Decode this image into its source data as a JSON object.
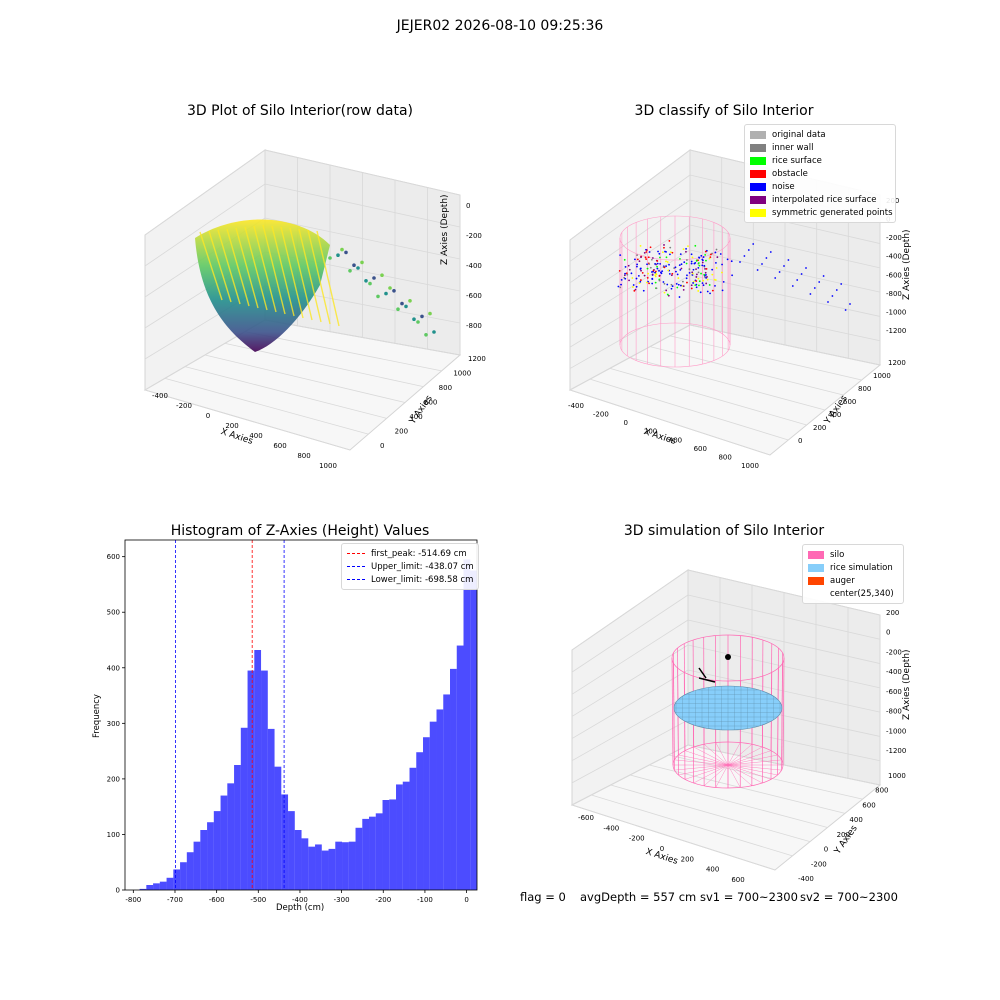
{
  "suptitle": "JEJER02 2026-08-10 09:25:36",
  "footer": {
    "flag": "flag = 0",
    "avg": "avgDepth = 557 cm",
    "sv1": "sv1 = 700~2300",
    "sv2": "sv2 = 700~2300"
  },
  "chart_data": [
    {
      "type": "scatter",
      "projection": "3d",
      "title": "3D Plot of Silo Interior(row data)",
      "xlabel": "X Axies",
      "ylabel": "Y Axies",
      "zlabel": "Z Axies (Depth)",
      "x_ticks": [
        "-400",
        "-200",
        "0",
        "200",
        "400",
        "600",
        "800",
        "1000"
      ],
      "y_ticks": [
        "0",
        "200",
        "400",
        "600",
        "800",
        "1000",
        "1200"
      ],
      "z_ticks": [
        "0",
        "-200",
        "-400",
        "-600",
        "-800"
      ],
      "colormap": "viridis",
      "grid": true
    },
    {
      "type": "scatter",
      "projection": "3d",
      "title": "3D classify of Silo Interior",
      "xlabel": "X Axies",
      "ylabel": "Y Axies",
      "zlabel": "Z Axies (Depth)",
      "x_ticks": [
        "-400",
        "-200",
        "0",
        "200",
        "400",
        "600",
        "800",
        "1000"
      ],
      "y_ticks": [
        "0",
        "200",
        "400",
        "600",
        "800",
        "1000",
        "1200"
      ],
      "z_ticks": [
        "200",
        "0",
        "-200",
        "-400",
        "-600",
        "-800",
        "-1000",
        "-1200"
      ],
      "legend": [
        {
          "label": "original data",
          "color": "#b0b0b0"
        },
        {
          "label": "inner wall",
          "color": "#808080"
        },
        {
          "label": "rice surface",
          "color": "#00ff00"
        },
        {
          "label": "obstacle",
          "color": "#ff0000"
        },
        {
          "label": "noise",
          "color": "#0000ff"
        },
        {
          "label": "interpolated rice surface",
          "color": "#800080"
        },
        {
          "label": "symmetric generated points",
          "color": "#ffff00"
        }
      ],
      "legend_loc": "upper right",
      "grid": true
    },
    {
      "type": "bar",
      "title": "Histogram of Z-Axies (Height) Values",
      "xlabel": "Depth (cm)",
      "ylabel": "Frequency",
      "x_ticks": [
        -800,
        -700,
        -600,
        -500,
        -400,
        -300,
        -200,
        -100,
        0
      ],
      "y_ticks": [
        0,
        100,
        200,
        300,
        400,
        500,
        600
      ],
      "xlim": [
        -820,
        25
      ],
      "ylim": [
        0,
        630
      ],
      "bin_width": 16.2,
      "bin_start": -785,
      "values": [
        2,
        9,
        12,
        15,
        22,
        37,
        50,
        68,
        87,
        108,
        122,
        142,
        170,
        192,
        225,
        292,
        395,
        432,
        395,
        290,
        222,
        172,
        142,
        108,
        93,
        78,
        82,
        71,
        74,
        87,
        86,
        87,
        112,
        128,
        132,
        138,
        162,
        163,
        190,
        195,
        220,
        248,
        275,
        303,
        325,
        352,
        398,
        440,
        595,
        575
      ],
      "bar_color": "#0000ff",
      "vlines": [
        {
          "x": -514.69,
          "color": "#ff0000",
          "label": "first_peak: -514.69 cm"
        },
        {
          "x": -438.07,
          "color": "#0000ff",
          "label": "Upper_limit: -438.07 cm"
        },
        {
          "x": -698.58,
          "color": "#0000ff",
          "label": "Lower_limit: -698.58 cm"
        }
      ],
      "legend_loc": "upper right"
    },
    {
      "type": "scatter",
      "projection": "3d",
      "title": "3D simulation of Silo Interior",
      "xlabel": "X Axies",
      "ylabel": "Y Axies",
      "zlabel": "Z Axies (Depth)",
      "x_ticks": [
        "-600",
        "-400",
        "-200",
        "0",
        "200",
        "400",
        "600"
      ],
      "y_ticks": [
        "-400",
        "-200",
        "0",
        "200",
        "400",
        "600",
        "800",
        "1000"
      ],
      "z_ticks": [
        "200",
        "0",
        "-200",
        "-400",
        "-600",
        "-800",
        "-1000",
        "-1200"
      ],
      "legend": [
        {
          "label": "silo",
          "color": "#ff69b4"
        },
        {
          "label": "rice simulation",
          "color": "#87cefa"
        },
        {
          "label": "auger",
          "color": "#ff4500"
        },
        {
          "label": "center(25,340)",
          "color": ""
        }
      ],
      "legend_loc": "upper right",
      "grid": true
    }
  ]
}
